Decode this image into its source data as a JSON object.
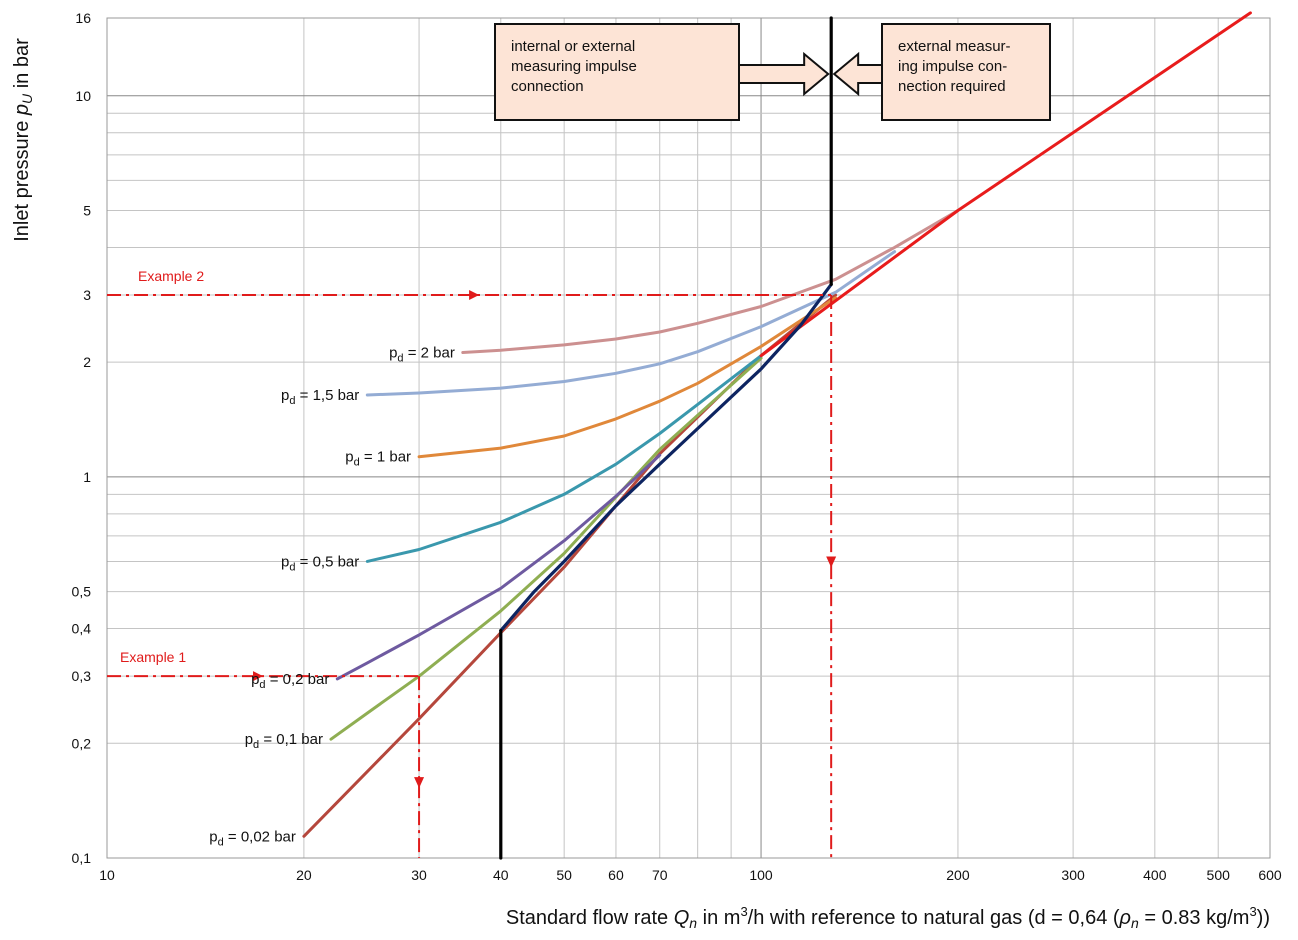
{
  "chart_data": {
    "type": "line",
    "xscale": "log",
    "yscale": "log",
    "xlim": [
      10,
      600
    ],
    "ylim": [
      0.1,
      16
    ],
    "grid": true,
    "xlabel": {
      "prefix": "Standard flow rate ",
      "var": "Q",
      "sub": "n",
      "mid": " in m",
      "sup": "3",
      "rest": "/h with reference to natural gas (d = 0,64 (",
      "rho": "ρ",
      "rhosub": "n",
      "rest2": " = 0.83 kg/m",
      "sup2": "3",
      "end": "))"
    },
    "ylabel": {
      "prefix": "Inlet pressure ",
      "var": "p",
      "sub": "U",
      "suffix": " in bar"
    },
    "x_ticks": [
      {
        "v": 10,
        "label": "10"
      },
      {
        "v": 20,
        "label": "20"
      },
      {
        "v": 30,
        "label": "30"
      },
      {
        "v": 40,
        "label": "40"
      },
      {
        "v": 50,
        "label": "50"
      },
      {
        "v": 60,
        "label": "60"
      },
      {
        "v": 70,
        "label": "70"
      },
      {
        "v": 100,
        "label": "100"
      },
      {
        "v": 200,
        "label": "200"
      },
      {
        "v": 300,
        "label": "300"
      },
      {
        "v": 400,
        "label": "400"
      },
      {
        "v": 500,
        "label": "500"
      },
      {
        "v": 600,
        "label": "600"
      }
    ],
    "y_ticks": [
      {
        "v": 0.1,
        "label": "0,1"
      },
      {
        "v": 0.2,
        "label": "0,2"
      },
      {
        "v": 0.3,
        "label": "0,3"
      },
      {
        "v": 0.4,
        "label": "0,4"
      },
      {
        "v": 0.5,
        "label": "0,5"
      },
      {
        "v": 1,
        "label": "1"
      },
      {
        "v": 2,
        "label": "2"
      },
      {
        "v": 3,
        "label": "3"
      },
      {
        "v": 5,
        "label": "5"
      },
      {
        "v": 10,
        "label": "10"
      },
      {
        "v": 16,
        "label": "16"
      }
    ],
    "series": [
      {
        "name": "p_d = 0,02 bar",
        "color": "#b5473c",
        "label": {
          "p": "p",
          "sub": "d",
          "rest": " = 0,02 bar"
        },
        "points": [
          [
            20,
            0.114
          ],
          [
            30,
            0.232
          ],
          [
            40,
            0.39
          ],
          [
            50,
            0.58
          ],
          [
            70,
            1.15
          ],
          [
            100,
            2.08
          ],
          [
            130,
            3.0
          ]
        ]
      },
      {
        "name": "p_d = 0,1 bar",
        "color": "#8fae52",
        "label": {
          "p": "p",
          "sub": "d",
          "rest": " = 0,1 bar"
        },
        "points": [
          [
            22,
            0.205
          ],
          [
            25,
            0.24
          ],
          [
            30,
            0.3
          ],
          [
            40,
            0.445
          ],
          [
            50,
            0.63
          ],
          [
            70,
            1.18
          ],
          [
            100,
            2.05
          ]
        ]
      },
      {
        "name": "p_d = 0,2 bar",
        "color": "#6e5aa0",
        "label": {
          "p": "p",
          "sub": "d",
          "rest": " = 0,2 bar"
        },
        "points": [
          [
            22.5,
            0.295
          ],
          [
            25,
            0.325
          ],
          [
            30,
            0.385
          ],
          [
            40,
            0.51
          ],
          [
            50,
            0.68
          ],
          [
            60,
            0.89
          ],
          [
            70,
            1.14
          ]
        ]
      },
      {
        "name": "p_d = 0,5 bar",
        "color": "#3a98ad",
        "label": {
          "p": "p",
          "sub": "d",
          "rest": " = 0,5 bar"
        },
        "points": [
          [
            25,
            0.6
          ],
          [
            30,
            0.645
          ],
          [
            40,
            0.76
          ],
          [
            50,
            0.9
          ],
          [
            60,
            1.08
          ],
          [
            70,
            1.3
          ],
          [
            80,
            1.55
          ],
          [
            100,
            2.08
          ]
        ]
      },
      {
        "name": "p_d = 1 bar",
        "color": "#e0883a",
        "label": {
          "p": "p",
          "sub": "d",
          "rest": " = 1 bar"
        },
        "points": [
          [
            30,
            1.13
          ],
          [
            40,
            1.19
          ],
          [
            50,
            1.28
          ],
          [
            60,
            1.42
          ],
          [
            70,
            1.58
          ],
          [
            80,
            1.76
          ],
          [
            100,
            2.2
          ],
          [
            130,
            2.95
          ]
        ]
      },
      {
        "name": "p_d = 1,5 bar",
        "color": "#94acd4",
        "label": {
          "p": "p",
          "sub": "d",
          "rest": " = 1,5 bar"
        },
        "points": [
          [
            25,
            1.64
          ],
          [
            30,
            1.66
          ],
          [
            40,
            1.71
          ],
          [
            50,
            1.78
          ],
          [
            60,
            1.87
          ],
          [
            70,
            1.98
          ],
          [
            80,
            2.13
          ],
          [
            100,
            2.48
          ],
          [
            130,
            3.05
          ],
          [
            160,
            3.9
          ]
        ]
      },
      {
        "name": "p_d = 2 bar",
        "color": "#cc9090",
        "label": {
          "p": "p",
          "sub": "d",
          "rest": " = 2 bar"
        },
        "points": [
          [
            35,
            2.12
          ],
          [
            40,
            2.15
          ],
          [
            50,
            2.22
          ],
          [
            60,
            2.3
          ],
          [
            70,
            2.4
          ],
          [
            80,
            2.53
          ],
          [
            100,
            2.8
          ],
          [
            130,
            3.3
          ],
          [
            160,
            4.0
          ],
          [
            200,
            5.0
          ]
        ]
      },
      {
        "name": "",
        "color": "#e81c1c",
        "label": null,
        "points": [
          [
            100,
            2.08
          ],
          [
            200,
            5.0
          ],
          [
            560,
            16.5
          ]
        ]
      },
      {
        "name": "",
        "color": "#0d2461",
        "label": null,
        "points": [
          [
            40,
            0.395
          ],
          [
            45,
            0.5
          ],
          [
            50,
            0.6
          ],
          [
            60,
            0.84
          ],
          [
            70,
            1.08
          ],
          [
            80,
            1.34
          ],
          [
            100,
            1.92
          ],
          [
            115,
            2.5
          ],
          [
            128,
            3.2
          ]
        ]
      },
      {
        "name": "",
        "color": "#000000",
        "label": null,
        "points": [
          [
            40,
            0.1
          ],
          [
            40,
            0.395
          ]
        ]
      },
      {
        "name": "",
        "color": "#000000",
        "label": null,
        "points": [
          [
            128,
            3.2
          ],
          [
            128,
            16
          ]
        ]
      }
    ],
    "examples": [
      {
        "label": "Example 1",
        "y": 0.3,
        "x": 30
      },
      {
        "label": "Example 2",
        "y": 3.0,
        "x": 128
      }
    ],
    "boxes": {
      "left": {
        "lines": [
          "internal or external",
          "measuring impulse",
          "connection"
        ]
      },
      "right": {
        "lines": [
          "external measur-",
          "ing impulse con-",
          "nection required"
        ]
      }
    },
    "colors": {
      "grid": "#c4c4c4",
      "annotation": "#e01b1b",
      "box_fill": "#fde4d6"
    }
  }
}
